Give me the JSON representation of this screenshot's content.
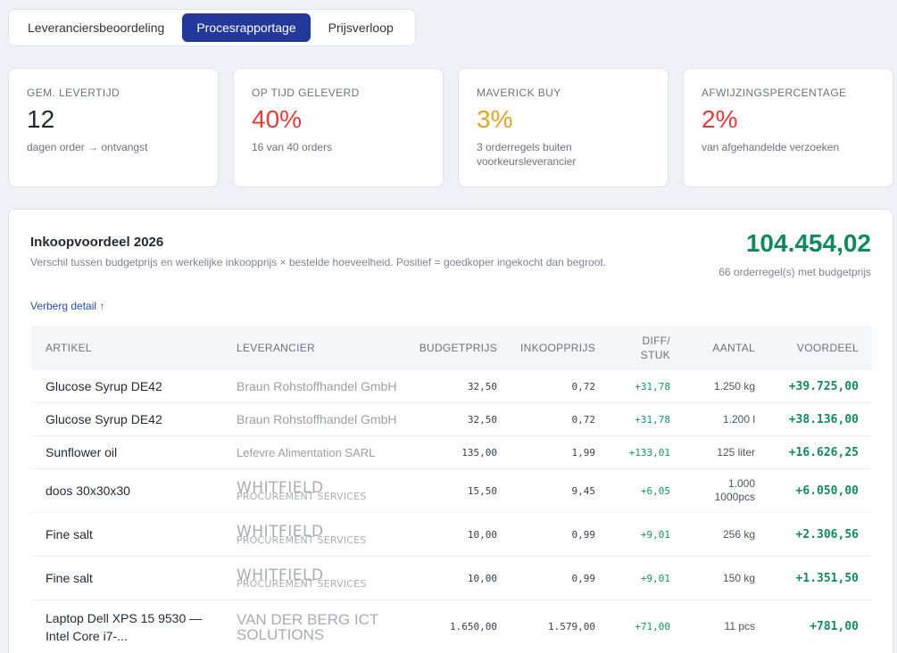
{
  "tabs": [
    {
      "label": "Leveranciersbeoordeling",
      "active": false
    },
    {
      "label": "Procesrapportage",
      "active": true
    },
    {
      "label": "Prijsverloop",
      "active": false
    }
  ],
  "kpis": [
    {
      "label": "GEM. LEVERTIJD",
      "value": "12",
      "sub": "dagen order → ontvangst",
      "color": "#1f2937"
    },
    {
      "label": "OP TIJD GELEVERD",
      "value": "40%",
      "sub": "16 van 40 orders",
      "color": "#e23b3b"
    },
    {
      "label": "MAVERICK BUY",
      "value": "3%",
      "sub": "3 orderregels buiten voorkeursleverancier",
      "color": "#e8a020"
    },
    {
      "label": "AFWIJZINGSPERCENTAGE",
      "value": "2%",
      "sub": "van afgehandelde verzoeken",
      "color": "#e23b3b"
    }
  ],
  "panel": {
    "title": "Inkoopvoordeel 2026",
    "subtitle": "Verschil tussen budgetprijs en werkelijke inkoopprijs × bestelde hoeveelheid. Positief = goedkoper ingekocht dan begroot.",
    "total": "104.454,02",
    "total_sub": "66 orderregel(s) met budgetprijs",
    "toggle": "Verberg detail ↑"
  },
  "table": {
    "headers": {
      "artikel": "ARTIKEL",
      "leverancier": "LEVERANCIER",
      "budgetprijs": "BUDGETPRIJS",
      "inkoopprijs": "INKOOPPRIJS",
      "diff": "DIFF/ STUK",
      "aantal": "AANTAL",
      "voordeel": "VOORDEEL"
    },
    "rows": [
      {
        "artikel": "Glucose Syrup DE42",
        "leverancier": "Braun Rohstoffhandel GmbH",
        "sup_style": "text",
        "budget": "32,50",
        "inkoop": "0,72",
        "diff": "+31,78",
        "aantal": "1.250 kg",
        "voordeel": "+39.725,00"
      },
      {
        "artikel": "Glucose Syrup DE42",
        "leverancier": "Braun Rohstoffhandel GmbH",
        "sup_style": "text",
        "budget": "32,50",
        "inkoop": "0,72",
        "diff": "+31,78",
        "aantal": "1.200 l",
        "voordeel": "+38.136,00"
      },
      {
        "artikel": "Sunflower oil",
        "leverancier": "Lefevre Alimentation SARL",
        "sup_style": "small",
        "budget": "135,00",
        "inkoop": "1,99",
        "diff": "+133,01",
        "aantal": "125 liter",
        "voordeel": "+16.626,25"
      },
      {
        "artikel": "doos 30x30x30",
        "leverancier": "WHITFIELD",
        "leverancier_sub": "PROCUREMENT SERVICES",
        "sup_style": "logo",
        "budget": "15,50",
        "inkoop": "9,45",
        "diff": "+6,05",
        "aantal": "1.000",
        "aantal_sub": "1000pcs",
        "voordeel": "+6.050,00"
      },
      {
        "artikel": "Fine salt",
        "leverancier": "WHITFIELD",
        "leverancier_sub": "PROCUREMENT SERVICES",
        "sup_style": "logo",
        "budget": "10,00",
        "inkoop": "0,99",
        "diff": "+9,01",
        "aantal": "256 kg",
        "voordeel": "+2.306,56"
      },
      {
        "artikel": "Fine salt",
        "leverancier": "WHITFIELD",
        "leverancier_sub": "PROCUREMENT SERVICES",
        "sup_style": "logo",
        "budget": "10,00",
        "inkoop": "0,99",
        "diff": "+9,01",
        "aantal": "150 kg",
        "voordeel": "+1.351,50"
      },
      {
        "artikel": "Laptop Dell XPS 15 9530 — Intel Core i7-...",
        "leverancier": "VAN DER BERG ICT SOLUTIONS",
        "sup_style": "logo2",
        "budget": "1.650,00",
        "inkoop": "1.579,00",
        "diff": "+71,00",
        "aantal": "11 pcs",
        "voordeel": "+781,00"
      }
    ]
  }
}
